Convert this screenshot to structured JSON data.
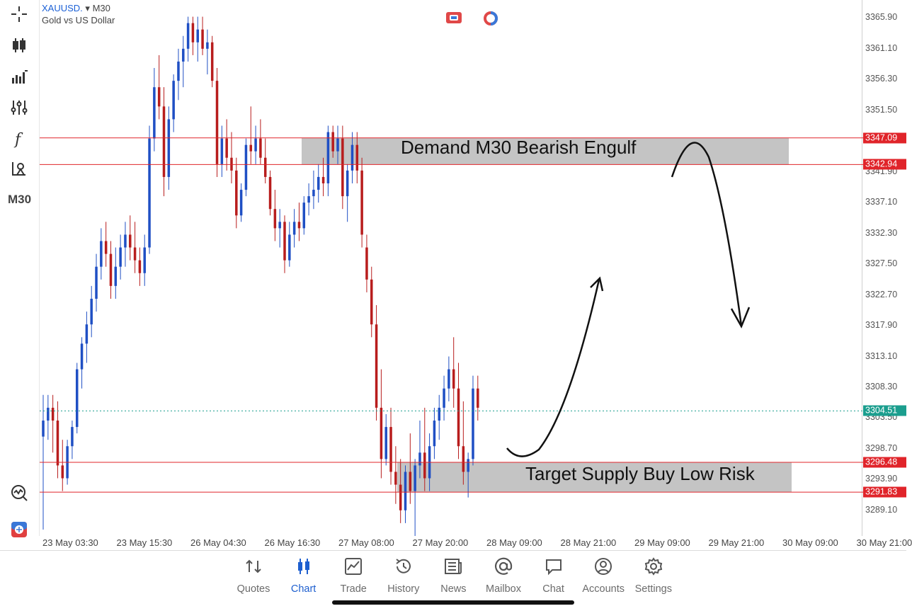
{
  "symbol": {
    "name": "XAUUSD.",
    "timeframe": "M30",
    "description": "Gold vs US Dollar"
  },
  "sidebar": {
    "timeframe_label": "M30",
    "tools": [
      "crosshair-icon",
      "chart-type-icon",
      "indicators-icon",
      "settings-sliders-icon",
      "function-icon",
      "objects-icon"
    ]
  },
  "colors": {
    "bull": "#1f4fc4",
    "bear": "#b81d1d",
    "zone": "#c4c4c4",
    "level_line": "#e0242a",
    "current": "#1b9e8e"
  },
  "price_axis": {
    "ticks": [
      "3365.90",
      "3361.10",
      "3356.30",
      "3351.50",
      "3341.90",
      "3337.10",
      "3332.30",
      "3327.50",
      "3322.70",
      "3317.90",
      "3313.10",
      "3308.30",
      "3303.50",
      "3298.70",
      "3293.90",
      "3289.10"
    ],
    "tags": [
      {
        "label": "3347.09",
        "price": 3347.09,
        "color": "#e0242a"
      },
      {
        "label": "3342.94",
        "price": 3342.94,
        "color": "#e0242a"
      },
      {
        "label": "3304.51",
        "price": 3304.51,
        "color": "#1b9e8e"
      },
      {
        "label": "3296.48",
        "price": 3296.48,
        "color": "#e0242a"
      },
      {
        "label": "3291.83",
        "price": 3291.83,
        "color": "#e0242a"
      }
    ]
  },
  "time_axis": [
    "23 May 03:30",
    "23 May 15:30",
    "26 May 04:30",
    "26 May 16:30",
    "27 May 08:00",
    "27 May 20:00",
    "28 May 09:00",
    "28 May 21:00",
    "29 May 09:00",
    "29 May 21:00",
    "30 May 09:00",
    "30 May 21:00"
  ],
  "zones": {
    "demand_label": "Demand M30 Bearish Engulf",
    "target_label": "Target Supply Buy Low Risk",
    "upper": [
      3342.94,
      3347.09
    ],
    "lower": [
      3291.83,
      3296.48
    ]
  },
  "current_price": 3304.51,
  "chart_data": {
    "type": "candlestick",
    "symbol": "XAUUSD.",
    "timeframe": "M30",
    "ylim": [
      3285.0,
      3367.5
    ],
    "candles_ohlc": [
      [
        3300.5,
        3307,
        3286,
        3303
      ],
      [
        3303,
        3307,
        3300,
        3305
      ],
      [
        3305,
        3307,
        3298,
        3303
      ],
      [
        3303,
        3306,
        3294,
        3296
      ],
      [
        3296,
        3300,
        3292,
        3294
      ],
      [
        3294,
        3300,
        3293,
        3299
      ],
      [
        3299,
        3303,
        3297,
        3302
      ],
      [
        3302,
        3312,
        3301,
        3311
      ],
      [
        3311,
        3316,
        3308,
        3315
      ],
      [
        3315,
        3320,
        3312,
        3318
      ],
      [
        3318,
        3324,
        3316,
        3322
      ],
      [
        3322,
        3329,
        3320,
        3327
      ],
      [
        3327,
        3333,
        3325,
        3331
      ],
      [
        3331,
        3334,
        3327,
        3329
      ],
      [
        3329,
        3331,
        3322,
        3324
      ],
      [
        3324,
        3330,
        3322,
        3327
      ],
      [
        3327,
        3332,
        3325,
        3330
      ],
      [
        3330,
        3334,
        3327,
        3332
      ],
      [
        3332,
        3335,
        3328,
        3330
      ],
      [
        3330,
        3334,
        3326,
        3328
      ],
      [
        3328,
        3330,
        3324,
        3326
      ],
      [
        3326,
        3332,
        3324,
        3330
      ],
      [
        3330,
        3349,
        3329,
        3347
      ],
      [
        3347,
        3358,
        3345,
        3355
      ],
      [
        3355,
        3360,
        3350,
        3352
      ],
      [
        3352,
        3355,
        3338,
        3341
      ],
      [
        3341,
        3352,
        3339,
        3350
      ],
      [
        3350,
        3357,
        3348,
        3356
      ],
      [
        3356,
        3361,
        3353,
        3359
      ],
      [
        3359,
        3363,
        3355,
        3361
      ],
      [
        3361,
        3366,
        3359,
        3365
      ],
      [
        3365,
        3366,
        3360,
        3362
      ],
      [
        3362,
        3366,
        3359,
        3364
      ],
      [
        3364,
        3366,
        3360,
        3361
      ],
      [
        3361,
        3364,
        3357,
        3362
      ],
      [
        3362,
        3363,
        3355,
        3356
      ],
      [
        3356,
        3358,
        3341,
        3343
      ],
      [
        3343,
        3349,
        3341,
        3347
      ],
      [
        3347,
        3350,
        3342,
        3344
      ],
      [
        3344,
        3348,
        3340,
        3342
      ],
      [
        3342,
        3344,
        3333,
        3335
      ],
      [
        3335,
        3340,
        3334,
        3339
      ],
      [
        3339,
        3347,
        3338,
        3346
      ],
      [
        3346,
        3352,
        3343,
        3345
      ],
      [
        3345,
        3349,
        3343,
        3347
      ],
      [
        3347,
        3350,
        3343,
        3344
      ],
      [
        3344,
        3347,
        3340,
        3341
      ],
      [
        3341,
        3342,
        3335,
        3336
      ],
      [
        3336,
        3339,
        3331,
        3333
      ],
      [
        3333,
        3336,
        3330,
        3334
      ],
      [
        3334,
        3335,
        3326,
        3328
      ],
      [
        3328,
        3334,
        3327,
        3332
      ],
      [
        3332,
        3336,
        3330,
        3334
      ],
      [
        3334,
        3337,
        3331,
        3333
      ],
      [
        3333,
        3338,
        3332,
        3337
      ],
      [
        3337,
        3340,
        3335,
        3338
      ],
      [
        3338,
        3342,
        3336,
        3339
      ],
      [
        3339,
        3343,
        3337,
        3341
      ],
      [
        3341,
        3344,
        3338,
        3340
      ],
      [
        3340,
        3349,
        3338,
        3348
      ],
      [
        3348,
        3349,
        3344,
        3345
      ],
      [
        3345,
        3349,
        3343,
        3347
      ],
      [
        3347,
        3349,
        3336,
        3338
      ],
      [
        3338,
        3343,
        3334,
        3342
      ],
      [
        3342,
        3348,
        3340,
        3346
      ],
      [
        3346,
        3348,
        3340,
        3342
      ],
      [
        3342,
        3344,
        3330,
        3332
      ],
      [
        3330,
        3332,
        3323,
        3325
      ],
      [
        3325,
        3327,
        3316,
        3318
      ],
      [
        3318,
        3321,
        3303,
        3305
      ],
      [
        3305,
        3311,
        3294,
        3297
      ],
      [
        3297,
        3304,
        3296,
        3302
      ],
      [
        3302,
        3305,
        3293,
        3295
      ],
      [
        3295,
        3299,
        3290,
        3293
      ],
      [
        3293,
        3297,
        3287,
        3289
      ],
      [
        3289,
        3296,
        3287,
        3295
      ],
      [
        3295,
        3301,
        3290,
        3292
      ],
      [
        3292,
        3297,
        3285,
        3296
      ],
      [
        3296,
        3303,
        3294,
        3298
      ],
      [
        3298,
        3305,
        3292,
        3294
      ],
      [
        3294,
        3301,
        3292,
        3299
      ],
      [
        3299,
        3305,
        3297,
        3303
      ],
      [
        3303,
        3307,
        3300,
        3305
      ],
      [
        3305,
        3310,
        3303,
        3308
      ],
      [
        3308,
        3313,
        3306,
        3311
      ],
      [
        3311,
        3316,
        3305,
        3308
      ],
      [
        3308,
        3312,
        3297,
        3299
      ],
      [
        3299,
        3306,
        3293,
        3295
      ],
      [
        3295,
        3298,
        3291,
        3297
      ],
      [
        3297,
        3310,
        3296,
        3308
      ],
      [
        3308,
        3310,
        3303,
        3305
      ]
    ]
  },
  "nav": [
    {
      "label": "Quotes",
      "icon": "quotes-icon"
    },
    {
      "label": "Chart",
      "icon": "chart-icon",
      "active": true
    },
    {
      "label": "Trade",
      "icon": "trade-icon"
    },
    {
      "label": "History",
      "icon": "history-icon"
    },
    {
      "label": "News",
      "icon": "news-icon"
    },
    {
      "label": "Mailbox",
      "icon": "mailbox-icon"
    },
    {
      "label": "Chat",
      "icon": "chat-icon"
    },
    {
      "label": "Accounts",
      "icon": "accounts-icon"
    },
    {
      "label": "Settings",
      "icon": "settings-icon"
    }
  ]
}
